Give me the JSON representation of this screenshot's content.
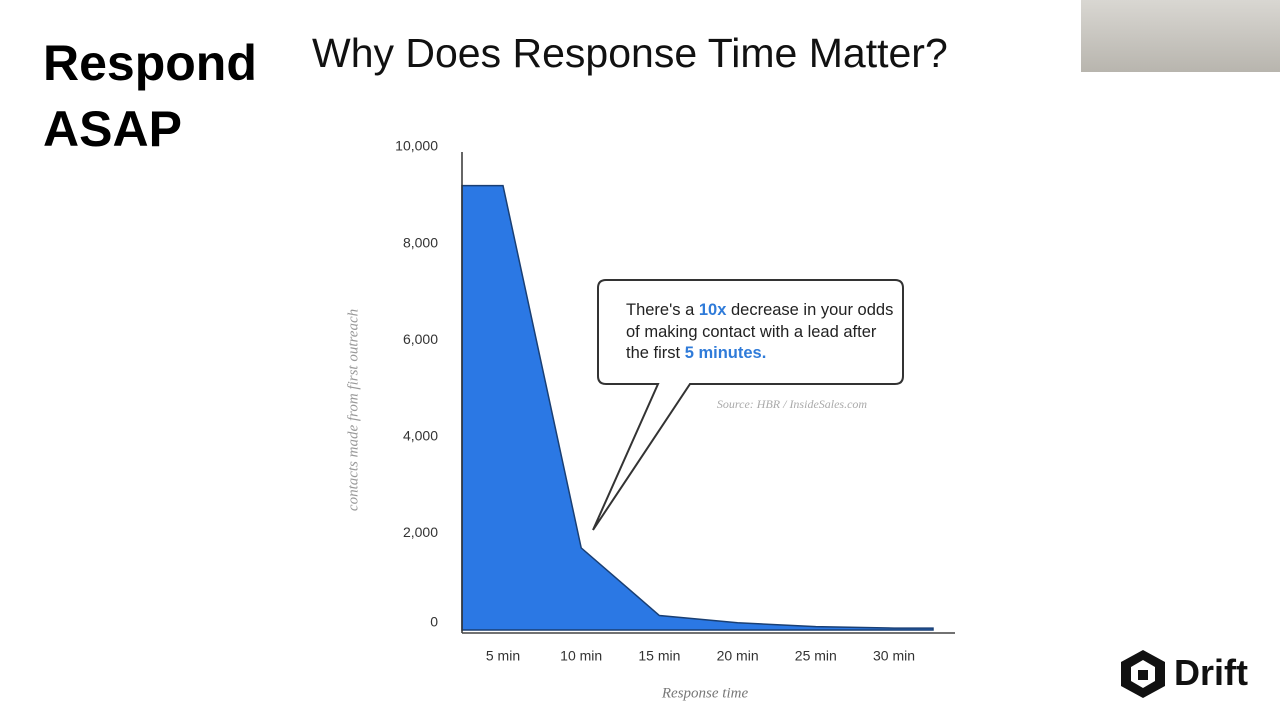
{
  "slide": {
    "heading": [
      "Respond",
      "ASAP"
    ],
    "logo": "Drift"
  },
  "chart_data": {
    "type": "area",
    "title": "Why Does Response Time Matter?",
    "x_label": "Response time",
    "y_label": "contacts made from first outreach",
    "categories": [
      "5 min",
      "10 min",
      "15 min",
      "20 min",
      "25 min",
      "30 min"
    ],
    "series": [
      {
        "name": "contacts",
        "color": "#2b78e4",
        "values": [
          9200,
          1700,
          300,
          150,
          70,
          40
        ]
      }
    ],
    "ylim": [
      0,
      10000
    ],
    "yticks": [
      0,
      {
        "value": 2000,
        "label": "2,000"
      },
      {
        "value": 4000,
        "label": "4,000"
      },
      {
        "value": 6000,
        "label": "6,000"
      },
      {
        "value": 8000,
        "label": "8,000"
      },
      {
        "value": 10000,
        "label": "10,000"
      }
    ],
    "annotation": [
      "There's a ",
      "10x",
      " decrease in your odds of making contact with a lead after the first ",
      "5 minutes."
    ],
    "source": "Source: HBR / InsideSales.com"
  }
}
